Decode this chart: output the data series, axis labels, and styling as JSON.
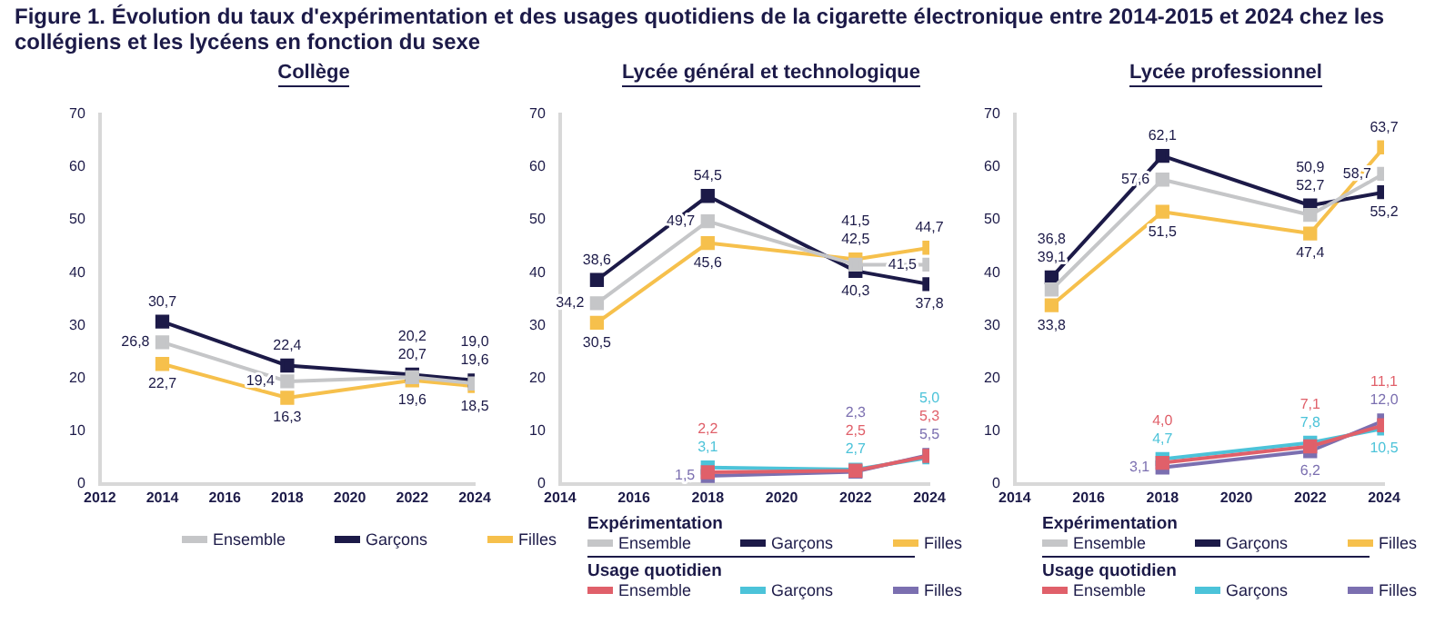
{
  "chart_data": [
    {
      "type": "line",
      "title": "Figure 1. Évolution du taux d'expérimentation et des usages quotidiens de la cigarette électronique entre 2014-2015 et 2024 chez les collégiens et les lycéens en fonction du sexe",
      "subtitle": "Collège",
      "x": [
        2014,
        2018,
        2022,
        2024
      ],
      "xlim": [
        2012,
        2024
      ],
      "xticks": [
        2012,
        2014,
        2016,
        2018,
        2020,
        2022,
        2024
      ],
      "ylim": [
        0,
        70
      ],
      "yticks": [
        0,
        10,
        20,
        30,
        40,
        50,
        60,
        70
      ],
      "marker": "square",
      "line_style": "solid",
      "grid": false,
      "legend": "bottom",
      "series": [
        {
          "name": "Ensemble",
          "color": "#c5c6c8",
          "values": [
            26.8,
            19.4,
            20.2,
            19.0
          ],
          "value_labels": [
            "26,8",
            "19,4",
            "20,2",
            "19,0"
          ]
        },
        {
          "name": "Garçons",
          "color": "#1c1a48",
          "values": [
            30.7,
            22.4,
            20.7,
            19.6
          ],
          "value_labels": [
            "30,7",
            "22,4",
            "20,7",
            "19,6"
          ]
        },
        {
          "name": "Filles",
          "color": "#f6c04c",
          "values": [
            22.7,
            16.3,
            19.6,
            18.5
          ],
          "value_labels": [
            "22,7",
            "16,3",
            "19,6",
            "18,5"
          ]
        }
      ]
    },
    {
      "type": "line",
      "subtitle": "Lycée général et technologique",
      "x": [
        2015,
        2018,
        2022,
        2024
      ],
      "xlim": [
        2014,
        2024
      ],
      "xticks": [
        2014,
        2016,
        2018,
        2020,
        2022,
        2024
      ],
      "ylim": [
        0,
        70
      ],
      "yticks": [
        0,
        10,
        20,
        30,
        40,
        50,
        60,
        70
      ],
      "marker": "square",
      "line_style": "solid",
      "grid": false,
      "legend": "bottom",
      "annotations": [
        "Expérimentation",
        "Usage quotidien"
      ],
      "series": [
        {
          "name": "Ensemble",
          "color": "#c5c6c8",
          "values": [
            34.2,
            49.7,
            41.5,
            41.5
          ],
          "value_labels": [
            "34,2",
            "49,7",
            "41,5",
            "41,5"
          ]
        },
        {
          "name": "Garçons",
          "color": "#1c1a48",
          "values": [
            38.6,
            54.5,
            40.3,
            37.8
          ],
          "value_labels": [
            "38,6",
            "54,5",
            "40,3",
            "37,8"
          ]
        },
        {
          "name": "Filles",
          "color": "#f6c04c",
          "values": [
            30.5,
            45.6,
            42.5,
            44.7
          ],
          "value_labels": [
            "30,5",
            "45,6",
            "42,5",
            "44,7"
          ]
        },
        {
          "name": "Ensemble",
          "color": "#e0606a",
          "x": [
            2018,
            2022,
            2024
          ],
          "values": [
            2.2,
            2.5,
            5.3
          ],
          "value_labels": [
            "2,2",
            "2,5",
            "5,3"
          ]
        },
        {
          "name": "Garçons",
          "color": "#4cc3d9",
          "x": [
            2018,
            2022,
            2024
          ],
          "values": [
            3.1,
            2.7,
            5.0
          ],
          "value_labels": [
            "3,1",
            "2,7",
            "5,0"
          ]
        },
        {
          "name": "Filles",
          "color": "#7b6fb0",
          "x": [
            2018,
            2022,
            2024
          ],
          "values": [
            1.5,
            2.3,
            5.5
          ],
          "value_labels": [
            "1,5",
            "2,3",
            "5,5"
          ]
        }
      ]
    },
    {
      "type": "line",
      "subtitle": "Lycée professionnel",
      "x": [
        2015,
        2018,
        2022,
        2024
      ],
      "xlim": [
        2014,
        2024
      ],
      "xticks": [
        2014,
        2016,
        2018,
        2020,
        2022,
        2024
      ],
      "ylim": [
        0,
        70
      ],
      "yticks": [
        0,
        10,
        20,
        30,
        40,
        50,
        60,
        70
      ],
      "marker": "square",
      "line_style": "solid",
      "grid": false,
      "legend": "bottom",
      "annotations": [
        "Expérimentation",
        "Usage quotidien"
      ],
      "series": [
        {
          "name": "Ensemble",
          "color": "#c5c6c8",
          "values": [
            36.8,
            57.6,
            50.9,
            58.7
          ],
          "value_labels": [
            "36,8",
            "57,6",
            "50,9",
            "58,7"
          ]
        },
        {
          "name": "Garçons",
          "color": "#1c1a48",
          "values": [
            39.1,
            62.1,
            52.7,
            55.2
          ],
          "value_labels": [
            "39,1",
            "62,1",
            "52,7",
            "55,2"
          ]
        },
        {
          "name": "Filles",
          "color": "#f6c04c",
          "values": [
            33.8,
            51.5,
            47.4,
            63.7
          ],
          "value_labels": [
            "33,8",
            "51,5",
            "47,4",
            "63,7"
          ]
        },
        {
          "name": "Ensemble",
          "color": "#e0606a",
          "x": [
            2018,
            2022,
            2024
          ],
          "values": [
            4.0,
            7.1,
            11.1
          ],
          "value_labels": [
            "4,0",
            "7,1",
            "11,1"
          ]
        },
        {
          "name": "Garçons",
          "color": "#4cc3d9",
          "x": [
            2018,
            2022,
            2024
          ],
          "values": [
            4.7,
            7.8,
            10.5
          ],
          "value_labels": [
            "4,7",
            "7,8",
            "10,5"
          ]
        },
        {
          "name": "Filles",
          "color": "#7b6fb0",
          "x": [
            2018,
            2022,
            2024
          ],
          "values": [
            3.1,
            6.2,
            12.0
          ],
          "value_labels": [
            "3,1",
            "6,2",
            "12,0"
          ]
        }
      ]
    }
  ]
}
